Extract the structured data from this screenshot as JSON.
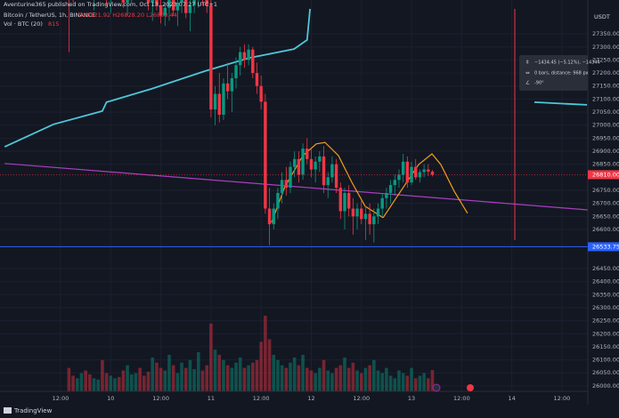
{
  "header": {
    "published": "Aventurine365 published on TradingView.com, Oct 13, 2023 07:27 UTC+1",
    "symbol": "Bitcoin / TetherUS, 1h, BINANCE",
    "ohlc_legend": "O26821.92 H26828.20 L26803.44",
    "volume_legend": "Vol · BTC (20)"
  },
  "footer": {
    "brand": "TradingView"
  },
  "chart_data": {
    "type": "candlestick",
    "currency": "USDT",
    "up_color": "#089981",
    "down_color": "#f23645",
    "xlim": [
      -2.5,
      138.2
    ],
    "ylim": [
      25928,
      27480
    ],
    "grid": true,
    "xticks": [
      {
        "value": 12,
        "label": "12:00"
      },
      {
        "value": 24,
        "label": "10"
      },
      {
        "value": 36,
        "label": "12:00"
      },
      {
        "value": 48,
        "label": "11"
      },
      {
        "value": 60,
        "label": "12:00"
      },
      {
        "value": 72,
        "label": "12"
      },
      {
        "value": 84,
        "label": "12:00"
      },
      {
        "value": 96,
        "label": "13"
      },
      {
        "value": 108,
        "label": "12:00"
      },
      {
        "value": 120,
        "label": "14"
      },
      {
        "value": 132,
        "label": "12:00"
      }
    ],
    "yticks": [
      {
        "value": 27350,
        "label": "27350.00"
      },
      {
        "value": 27300,
        "label": "27300.00"
      },
      {
        "value": 27250,
        "label": "27250.00"
      },
      {
        "value": 27200,
        "label": "27200.00"
      },
      {
        "value": 27150,
        "label": "27150.00"
      },
      {
        "value": 27100,
        "label": "27100.00"
      },
      {
        "value": 27050,
        "label": "27050.00"
      },
      {
        "value": 27000,
        "label": "27000.00"
      },
      {
        "value": 26950,
        "label": "26950.00"
      },
      {
        "value": 26900,
        "label": "26900.00"
      },
      {
        "value": 26850,
        "label": "26850.00"
      },
      {
        "value": 26750,
        "label": "26750.00"
      },
      {
        "value": 26700,
        "label": "26700.00"
      },
      {
        "value": 26650,
        "label": "26650.00"
      },
      {
        "value": 26600,
        "label": "26600.00"
      },
      {
        "value": 26450,
        "label": "26450.00"
      },
      {
        "value": 26400,
        "label": "26400.00"
      },
      {
        "value": 26350,
        "label": "26350.00"
      },
      {
        "value": 26300,
        "label": "26300.00"
      },
      {
        "value": 26250,
        "label": "26250.00"
      },
      {
        "value": 26200,
        "label": "26200.00"
      },
      {
        "value": 26150,
        "label": "26150.00"
      },
      {
        "value": 26100,
        "label": "26100.00"
      },
      {
        "value": 26050,
        "label": "26050.00"
      },
      {
        "value": 26000,
        "label": "26000.00"
      }
    ],
    "x": [
      14,
      15,
      16,
      17,
      18,
      19,
      20,
      21,
      22,
      23,
      24,
      25,
      26,
      27,
      28,
      29,
      30,
      31,
      32,
      33,
      34,
      35,
      36,
      37,
      38,
      39,
      40,
      41,
      42,
      43,
      44,
      45,
      46,
      47,
      48,
      49,
      50,
      51,
      52,
      53,
      54,
      55,
      56,
      57,
      58,
      59,
      60,
      61,
      62,
      63,
      64,
      65,
      66,
      67,
      68,
      69,
      70,
      71,
      72,
      73,
      74,
      75,
      76,
      77,
      78,
      79,
      80,
      81,
      82,
      83,
      84,
      85,
      86,
      87,
      88,
      89,
      90,
      91,
      92,
      93,
      94,
      95,
      96,
      97,
      98,
      99,
      100,
      101
    ],
    "ohlc": [
      [
        27560,
        27600,
        27280,
        27540
      ],
      [
        27540,
        27580,
        27470,
        27520
      ],
      [
        27520,
        27560,
        27490,
        27545
      ],
      [
        27545,
        27590,
        27500,
        27570
      ],
      [
        27570,
        27600,
        27520,
        27530
      ],
      [
        27530,
        27560,
        27480,
        27500
      ],
      [
        27500,
        27540,
        27440,
        27525
      ],
      [
        27525,
        27570,
        27490,
        27550
      ],
      [
        27550,
        27590,
        27510,
        27520
      ],
      [
        27520,
        27550,
        27460,
        27490
      ],
      [
        27490,
        27530,
        27430,
        27510
      ],
      [
        27510,
        27560,
        27480,
        27540
      ],
      [
        27540,
        27580,
        27500,
        27520
      ],
      [
        27520,
        27550,
        27450,
        27470
      ],
      [
        27470,
        27520,
        27420,
        27500
      ],
      [
        27500,
        27560,
        27470,
        27545
      ],
      [
        27545,
        27600,
        27510,
        27580
      ],
      [
        27580,
        27620,
        27530,
        27550
      ],
      [
        27550,
        27580,
        27490,
        27510
      ],
      [
        27510,
        27540,
        27440,
        27470
      ],
      [
        27470,
        27510,
        27400,
        27490
      ],
      [
        27490,
        27530,
        27440,
        27460
      ],
      [
        27460,
        27500,
        27390,
        27420
      ],
      [
        27420,
        27470,
        27380,
        27450
      ],
      [
        27450,
        27500,
        27400,
        27480
      ],
      [
        27480,
        27520,
        27420,
        27440
      ],
      [
        27440,
        27490,
        27380,
        27470
      ],
      [
        27470,
        27520,
        27430,
        27500
      ],
      [
        27500,
        27540,
        27410,
        27430
      ],
      [
        27430,
        27480,
        27360,
        27460
      ],
      [
        27460,
        27510,
        27430,
        27490
      ],
      [
        27490,
        27530,
        27450,
        27510
      ],
      [
        27510,
        27540,
        27460,
        27480
      ],
      [
        27480,
        27520,
        27430,
        27460
      ],
      [
        27460,
        27480,
        27030,
        27060
      ],
      [
        27060,
        27150,
        27000,
        27120
      ],
      [
        27120,
        27200,
        27010,
        27040
      ],
      [
        27040,
        27180,
        27020,
        27160
      ],
      [
        27160,
        27240,
        27100,
        27130
      ],
      [
        27130,
        27200,
        27050,
        27180
      ],
      [
        27180,
        27260,
        27140,
        27230
      ],
      [
        27230,
        27300,
        27190,
        27280
      ],
      [
        27280,
        27310,
        27220,
        27250
      ],
      [
        27250,
        27310,
        27230,
        27290
      ],
      [
        27290,
        27300,
        27180,
        27200
      ],
      [
        27200,
        27240,
        27120,
        27150
      ],
      [
        27150,
        27190,
        27060,
        27090
      ],
      [
        27090,
        27120,
        26660,
        26680
      ],
      [
        26680,
        26760,
        26540,
        26620
      ],
      [
        26620,
        26700,
        26600,
        26680
      ],
      [
        26680,
        26760,
        26640,
        26740
      ],
      [
        26740,
        26820,
        26700,
        26790
      ],
      [
        26790,
        26840,
        26730,
        26760
      ],
      [
        26760,
        26860,
        26740,
        26840
      ],
      [
        26840,
        26900,
        26800,
        26870
      ],
      [
        26870,
        26900,
        26780,
        26810
      ],
      [
        26810,
        26930,
        26790,
        26910
      ],
      [
        26910,
        26950,
        26850,
        26870
      ],
      [
        26870,
        26910,
        26800,
        26830
      ],
      [
        26830,
        26880,
        26780,
        26860
      ],
      [
        26860,
        26900,
        26820,
        26880
      ],
      [
        26880,
        26920,
        26740,
        26770
      ],
      [
        26770,
        26820,
        26720,
        26800
      ],
      [
        26800,
        26880,
        26780,
        26850
      ],
      [
        26850,
        26870,
        26740,
        26760
      ],
      [
        26760,
        26780,
        26640,
        26670
      ],
      [
        26670,
        26760,
        26600,
        26740
      ],
      [
        26740,
        26770,
        26650,
        26680
      ],
      [
        26680,
        26720,
        26580,
        26650
      ],
      [
        26650,
        26700,
        26600,
        26680
      ],
      [
        26680,
        26710,
        26620,
        26640
      ],
      [
        26640,
        26690,
        26560,
        26660
      ],
      [
        26660,
        26700,
        26580,
        26620
      ],
      [
        26620,
        26680,
        26550,
        26650
      ],
      [
        26650,
        26700,
        26620,
        26680
      ],
      [
        26680,
        26740,
        26650,
        26720
      ],
      [
        26720,
        26760,
        26680,
        26740
      ],
      [
        26740,
        26790,
        26700,
        26770
      ],
      [
        26770,
        26810,
        26730,
        26790
      ],
      [
        26790,
        26830,
        26760,
        26810
      ],
      [
        26810,
        26890,
        26780,
        26860
      ],
      [
        26860,
        26880,
        26760,
        26780
      ],
      [
        26780,
        26860,
        26770,
        26840
      ],
      [
        26840,
        26870,
        26790,
        26800
      ],
      [
        26800,
        26830,
        26780,
        26820
      ],
      [
        26820,
        26850,
        26800,
        26830
      ],
      [
        26830,
        26850,
        26805,
        26822
      ],
      [
        26821.92,
        26828.2,
        26803.44,
        26810
      ]
    ],
    "volume": [
      900,
      600,
      500,
      700,
      800,
      650,
      500,
      450,
      1200,
      700,
      600,
      500,
      550,
      800,
      1000,
      650,
      700,
      900,
      600,
      750,
      1300,
      1100,
      900,
      800,
      1400,
      1000,
      700,
      1100,
      900,
      1200,
      850,
      1500,
      800,
      1000,
      2600,
      1600,
      1400,
      1200,
      1000,
      900,
      1100,
      1300,
      900,
      1000,
      1100,
      1200,
      1900,
      2900,
      2000,
      1400,
      1200,
      1000,
      900,
      1100,
      1300,
      1000,
      1400,
      900,
      800,
      700,
      900,
      1200,
      800,
      700,
      900,
      1000,
      1300,
      900,
      1100,
      800,
      700,
      900,
      1000,
      1200,
      800,
      700,
      900,
      600,
      500,
      800,
      700,
      600,
      900,
      500,
      600,
      700,
      500,
      815
    ],
    "last_price": {
      "value": 26810,
      "label": "26810.00"
    },
    "hline": {
      "value": 26533.75,
      "label": "26533.75",
      "color": "#2962ff"
    },
    "lines": [
      {
        "color": "#4dc8d8",
        "x": [
          -1.4,
          10.3,
          22,
          23,
          33.7,
          46.5,
          57.2,
          67.9,
          71,
          71.7,
          121,
          125.4,
          138
        ],
        "y": [
          26917,
          27003,
          27054,
          27088,
          27139,
          27207,
          27258,
          27292,
          27327,
          27446,
          null,
          27088,
          27078
        ]
      },
      {
        "color": "#a93fbf",
        "x": [
          -1.4,
          138.2
        ],
        "y": [
          26853,
          26675
        ]
      },
      {
        "color": "#f59d1a",
        "x": [
          62.5,
          65.7,
          70,
          73.2,
          75.3,
          78.5,
          81.7,
          84.9,
          89.2
        ],
        "y": [
          26627,
          26764,
          26883,
          26928,
          26934,
          26883,
          26781,
          26689,
          26645
        ]
      },
      {
        "color": "#f59d1a",
        "x": [
          89.2,
          93.4,
          97.7,
          100.9,
          103,
          106.2,
          109.4
        ],
        "y": [
          26645,
          26747,
          26849,
          26890,
          26849,
          26747,
          26662
        ]
      }
    ],
    "measure": {
      "change": "−1434.45 (−5.12%), −14344",
      "bars": "0 bars, distance: 968 px",
      "angle": "-90°"
    }
  }
}
